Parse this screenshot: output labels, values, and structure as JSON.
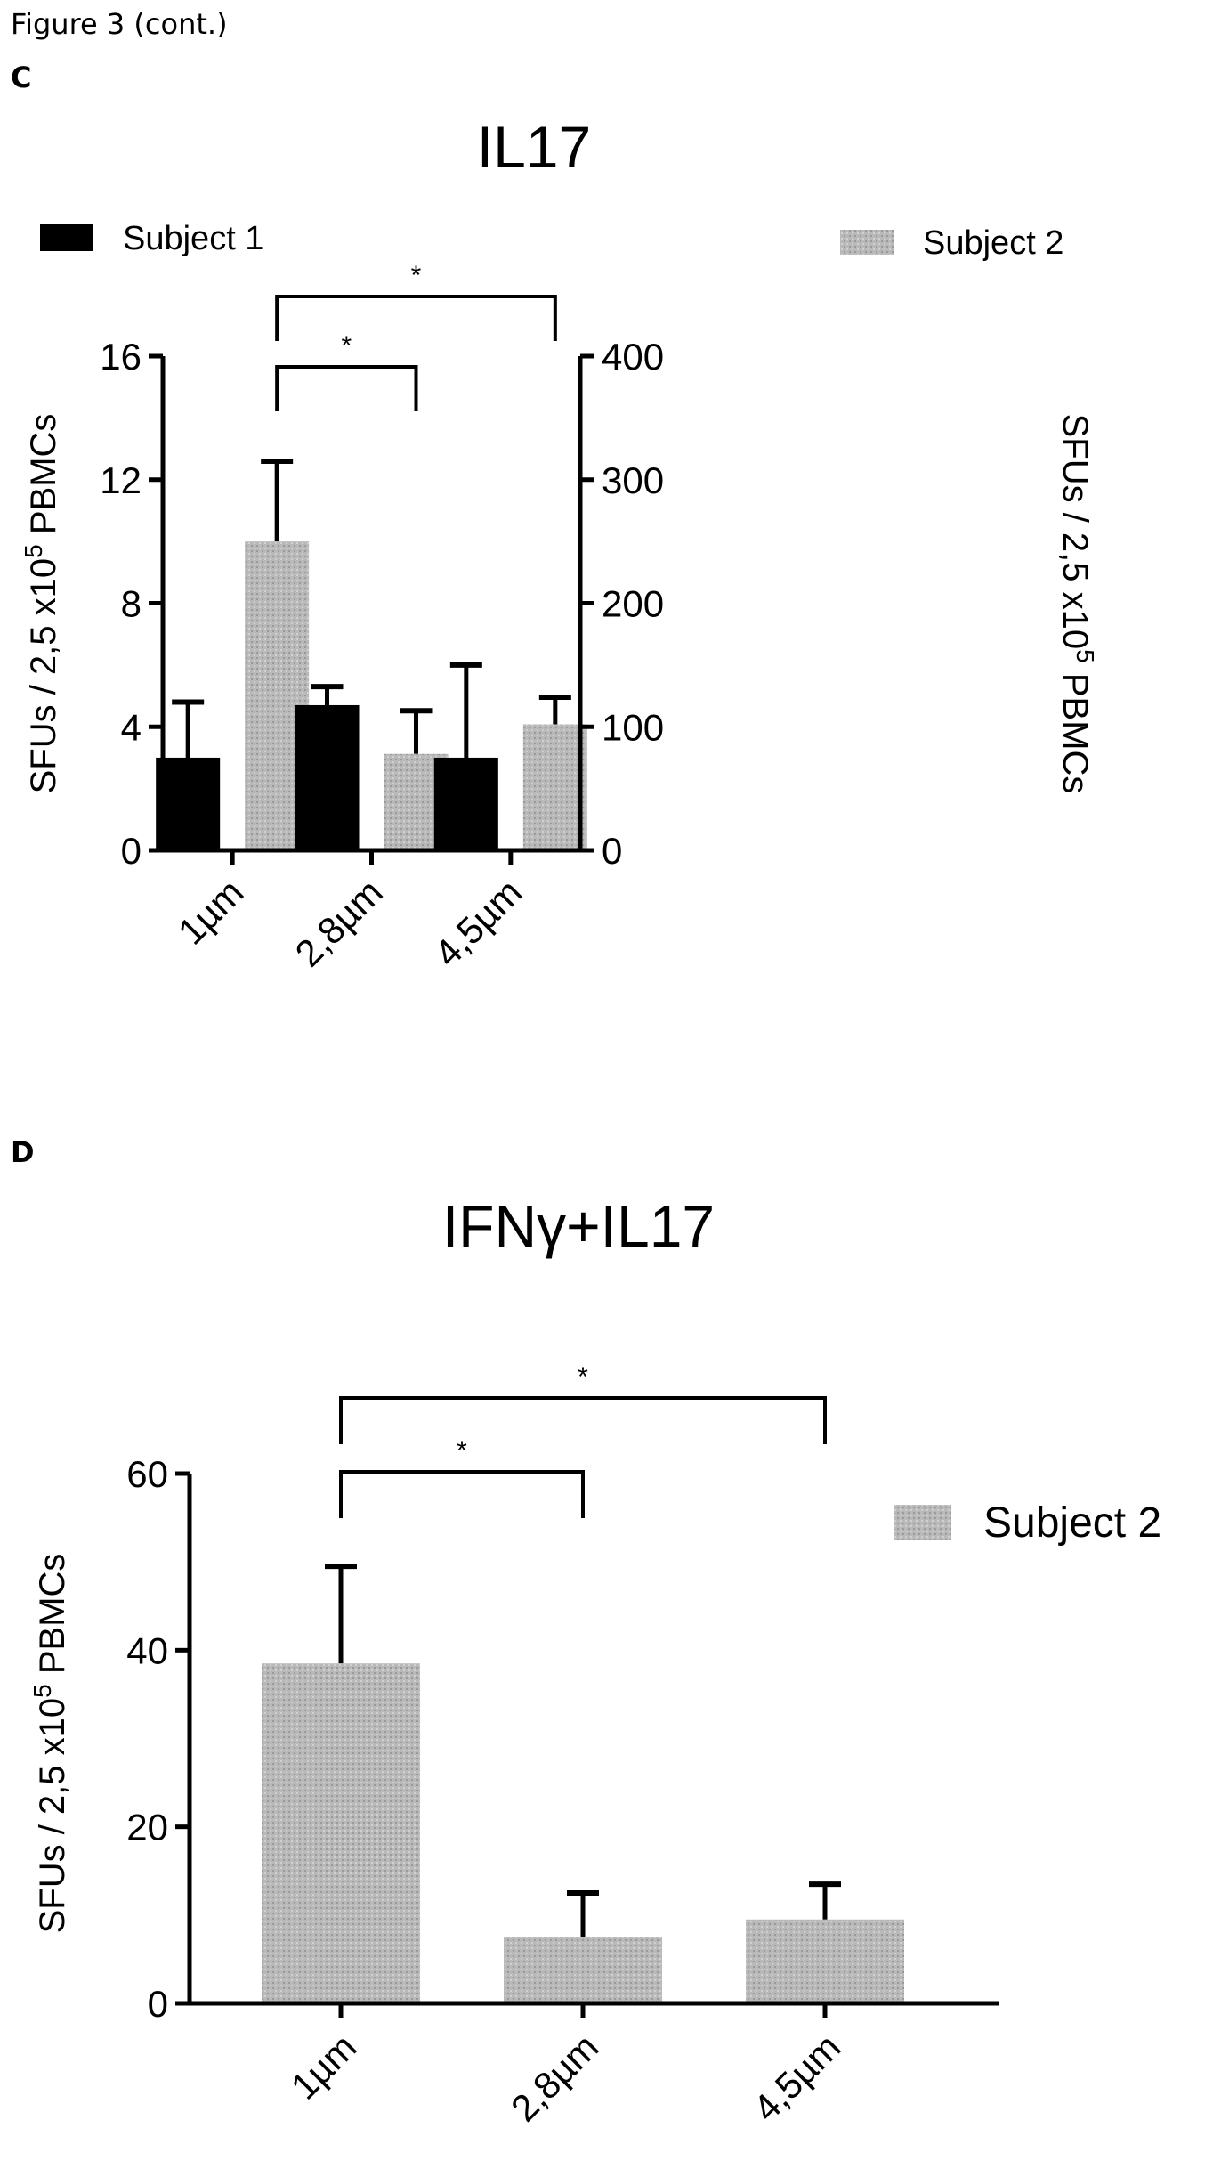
{
  "figure_caption": "Figure 3 (cont.)",
  "panel_letters": [
    "C",
    "D"
  ],
  "colors": {
    "subject1": "#000000",
    "subject2": "#b3b3b3",
    "axis": "#000000"
  },
  "chart_data": [
    {
      "type": "bar",
      "panel": "C",
      "title": "IL17",
      "categories": [
        "1µm",
        "2,8µm",
        "4,5µm"
      ],
      "series": [
        {
          "name": "Subject 1",
          "axis": "left",
          "values": [
            3.0,
            4.7,
            3.0
          ],
          "errors": [
            1.8,
            0.6,
            3.0
          ]
        },
        {
          "name": "Subject 2",
          "axis": "right",
          "values": [
            250,
            78,
            102
          ],
          "errors": [
            65,
            35,
            22
          ]
        }
      ],
      "ylabel": "SFUs / 2,5 x10^5 PBMCs",
      "ylabel_left": "SFUs / 2,5 x10",
      "ylabel_sup": "5",
      "ylabel_tail": " PBMCs",
      "y_left": {
        "ylim": [
          0,
          16
        ],
        "ticks": [
          "0",
          "4",
          "8",
          "12",
          "16"
        ]
      },
      "y_right": {
        "ylim": [
          0,
          400
        ],
        "ticks": [
          "0",
          "100",
          "200",
          "300",
          "400"
        ]
      },
      "legend": "top",
      "grid": false,
      "significance": [
        {
          "from": "1µm",
          "to": "2,8µm",
          "label": "*"
        },
        {
          "from": "1µm",
          "to": "4,5µm",
          "label": "*"
        }
      ]
    },
    {
      "type": "bar",
      "panel": "D",
      "title": "IFNγ+IL17",
      "categories": [
        "1µm",
        "2,8µm",
        "4,5µm"
      ],
      "series": [
        {
          "name": "Subject 2",
          "values": [
            38.5,
            7.5,
            9.5
          ],
          "errors": [
            11,
            5,
            4
          ]
        }
      ],
      "ylabel_left": "SFUs / 2,5 x10",
      "ylabel_sup": "5",
      "ylabel_tail": " PBMCs",
      "ylim": [
        0,
        60
      ],
      "ticks": [
        "0",
        "20",
        "40",
        "60"
      ],
      "legend": "right",
      "grid": false,
      "significance": [
        {
          "from": "1µm",
          "to": "2,8µm",
          "label": "*"
        },
        {
          "from": "1µm",
          "to": "4,5µm",
          "label": "*"
        }
      ]
    }
  ]
}
